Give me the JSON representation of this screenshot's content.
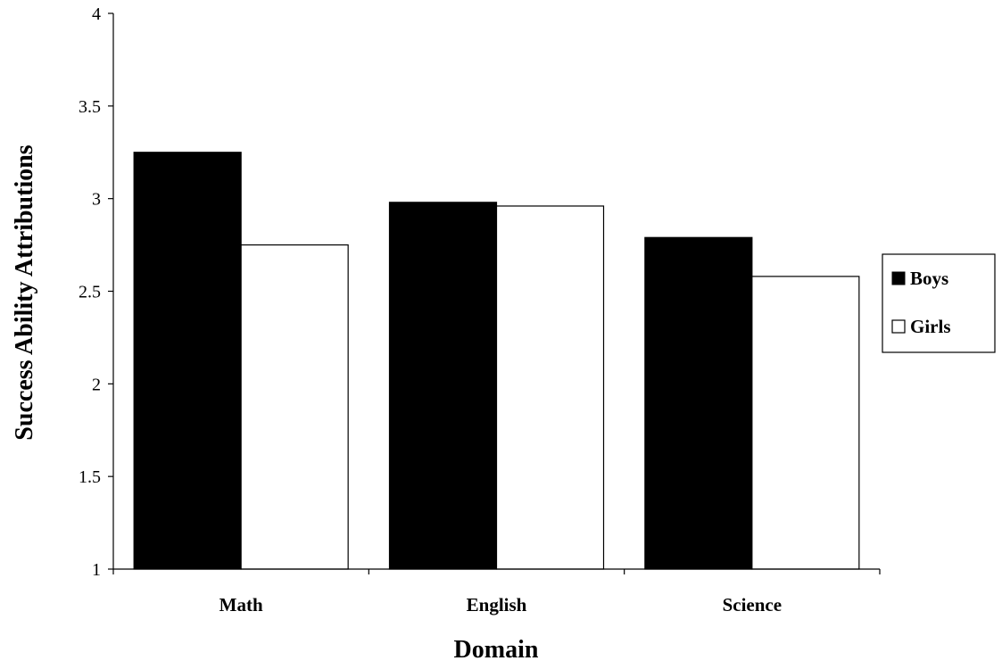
{
  "chart_data": {
    "type": "bar",
    "categories": [
      "Math",
      "English",
      "Science"
    ],
    "series": [
      {
        "name": "Boys",
        "values": [
          3.25,
          2.98,
          2.79
        ],
        "color": "#000000"
      },
      {
        "name": "Girls",
        "values": [
          2.75,
          2.96,
          2.58
        ],
        "color": "#ffffff"
      }
    ],
    "title": "",
    "xlabel": "Domain",
    "ylabel": "Success Ability Attributions",
    "ylim": [
      1,
      4
    ],
    "yticks": [
      "1",
      "1.5",
      "2",
      "2.5",
      "3",
      "3.5",
      "4"
    ],
    "grid": false,
    "legend_position": "right"
  }
}
